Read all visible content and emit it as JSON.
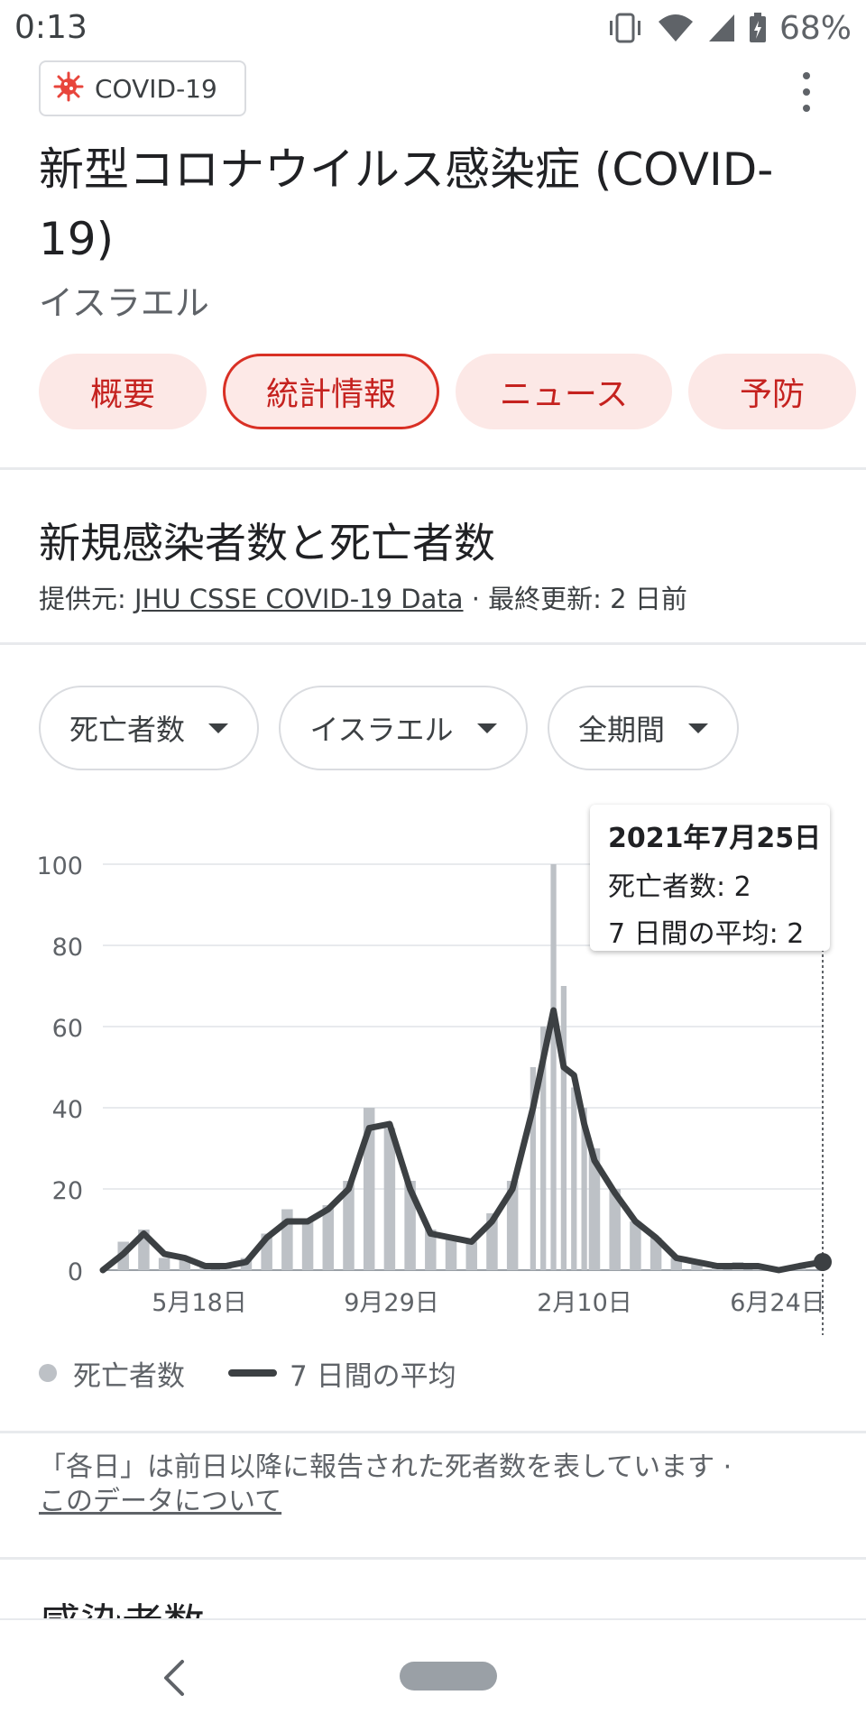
{
  "status_bar": {
    "time": "0:13",
    "battery": "68%"
  },
  "topic_chip": {
    "label": "COVID-19",
    "icon": "virus-icon"
  },
  "page": {
    "title": "新型コロナウイルス感染症 (COVID-19)",
    "region": "イスラエル"
  },
  "tabs": [
    {
      "label": "概要",
      "active": false
    },
    {
      "label": "統計情報",
      "active": true
    },
    {
      "label": "ニュース",
      "active": false
    },
    {
      "label": "予防",
      "active": false
    }
  ],
  "section": {
    "title": "新規感染者数と死亡者数",
    "source_prefix": "提供元: ",
    "source_link": "JHU CSSE COVID-19 Data",
    "updated": " · 最終更新: 2 日前"
  },
  "filters": [
    {
      "label": "死亡者数"
    },
    {
      "label": "イスラエル"
    },
    {
      "label": "全期間"
    }
  ],
  "tooltip": {
    "date": "2021年7月25日",
    "deaths": "死亡者数: 2",
    "average": "7 日間の平均: 2"
  },
  "legend": {
    "daily": "死亡者数",
    "average": "7 日間の平均"
  },
  "note": {
    "text": "「各日」は前日以降に報告された死者数を表しています ·",
    "link": "このデータについて"
  },
  "next_section_title": "感染者数",
  "colors": {
    "accent_red": "#d93025",
    "tab_bg": "#fce8e6",
    "bar_gray": "#bdc1c6",
    "line_dark": "#3c4043"
  },
  "chart_data": {
    "type": "bar",
    "title": "",
    "x_tick_labels": [
      "5月18日",
      "9月29日",
      "2月10日",
      "6月24日"
    ],
    "y_ticks": [
      0,
      20,
      40,
      60,
      80,
      100
    ],
    "ylim": [
      0,
      100
    ],
    "grid": true,
    "x_start": "2020-03-20",
    "x_end": "2021-07-25",
    "series": [
      {
        "name": "死亡者数",
        "kind": "bar",
        "color": "#bdc1c6",
        "dates": [
          "2020-03-20",
          "2020-04-03",
          "2020-04-17",
          "2020-05-01",
          "2020-05-15",
          "2020-05-29",
          "2020-06-12",
          "2020-06-26",
          "2020-07-10",
          "2020-07-24",
          "2020-08-07",
          "2020-08-21",
          "2020-09-04",
          "2020-09-18",
          "2020-10-02",
          "2020-10-16",
          "2020-10-30",
          "2020-11-13",
          "2020-11-27",
          "2020-12-11",
          "2020-12-25",
          "2021-01-08",
          "2021-01-15",
          "2021-01-22",
          "2021-01-29",
          "2021-02-05",
          "2021-02-12",
          "2021-02-19",
          "2021-03-05",
          "2021-03-19",
          "2021-04-02",
          "2021-04-16",
          "2021-04-30",
          "2021-05-14",
          "2021-05-28",
          "2021-06-11",
          "2021-06-25",
          "2021-07-09",
          "2021-07-25"
        ],
        "values": [
          0,
          7,
          10,
          3,
          3,
          1,
          1,
          3,
          9,
          15,
          12,
          16,
          22,
          40,
          35,
          22,
          10,
          8,
          7,
          14,
          22,
          50,
          60,
          100,
          70,
          45,
          40,
          30,
          20,
          12,
          8,
          3,
          2,
          1,
          2,
          1,
          0,
          1,
          2
        ]
      },
      {
        "name": "7 日間の平均",
        "kind": "line",
        "color": "#3c4043",
        "dates": [
          "2020-03-20",
          "2020-04-03",
          "2020-04-17",
          "2020-05-01",
          "2020-05-15",
          "2020-05-29",
          "2020-06-12",
          "2020-06-26",
          "2020-07-10",
          "2020-07-24",
          "2020-08-07",
          "2020-08-21",
          "2020-09-04",
          "2020-09-18",
          "2020-10-02",
          "2020-10-16",
          "2020-10-30",
          "2020-11-13",
          "2020-11-27",
          "2020-12-11",
          "2020-12-25",
          "2021-01-08",
          "2021-01-15",
          "2021-01-22",
          "2021-01-29",
          "2021-02-05",
          "2021-02-12",
          "2021-02-19",
          "2021-03-05",
          "2021-03-19",
          "2021-04-02",
          "2021-04-16",
          "2021-04-30",
          "2021-05-14",
          "2021-05-28",
          "2021-06-11",
          "2021-06-25",
          "2021-07-09",
          "2021-07-25"
        ],
        "values": [
          0,
          4,
          9,
          4,
          3,
          1,
          1,
          2,
          8,
          12,
          12,
          15,
          20,
          35,
          36,
          20,
          9,
          8,
          7,
          12,
          20,
          40,
          52,
          64,
          50,
          48,
          36,
          27,
          19,
          12,
          8,
          3,
          2,
          1,
          1,
          1,
          0,
          1,
          2
        ]
      }
    ],
    "selected_point": {
      "date": "2021-07-25",
      "deaths": 2,
      "average": 2
    },
    "legend_position": "bottom-left"
  }
}
